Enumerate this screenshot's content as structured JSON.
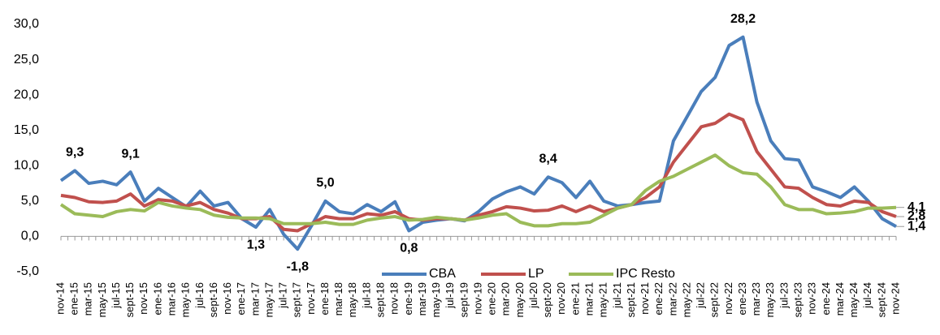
{
  "chart_data": {
    "type": "line",
    "categories": [
      "nov-14",
      "ene-15",
      "mar-15",
      "may-15",
      "jul-15",
      "sept-15",
      "nov-15",
      "ene-16",
      "mar-16",
      "may-16",
      "jul-16",
      "sept-16",
      "nov-16",
      "ene-17",
      "mar-17",
      "may-17",
      "jul-17",
      "sept-17",
      "nov-17",
      "ene-18",
      "mar-18",
      "may-18",
      "jul-18",
      "sept-18",
      "nov-18",
      "ene-19",
      "mar-19",
      "may-19",
      "jul-19",
      "sept-19",
      "nov-19",
      "ene-20",
      "mar-20",
      "may-20",
      "jul-20",
      "sept-20",
      "nov-20",
      "ene-21",
      "mar-21",
      "may-21",
      "jul-21",
      "sept-21",
      "nov-21",
      "ene-22",
      "mar-22",
      "may-22",
      "jul-22",
      "sept-22",
      "nov-22",
      "ene-23",
      "mar-23",
      "may-23",
      "jul-23",
      "sept-23",
      "nov-23",
      "ene-24",
      "mar-24",
      "may-24",
      "jul-24",
      "sept-24",
      "nov-24"
    ],
    "series": [
      {
        "name": "CBA",
        "color": "#4a7ebb",
        "values": [
          7.9,
          9.3,
          7.5,
          7.8,
          7.3,
          9.1,
          5.0,
          6.8,
          5.5,
          4.2,
          6.4,
          4.3,
          4.8,
          2.5,
          1.3,
          3.8,
          0.3,
          -1.8,
          1.5,
          5.0,
          3.5,
          3.2,
          4.5,
          3.5,
          4.9,
          0.8,
          2.0,
          2.3,
          2.5,
          2.2,
          3.5,
          5.3,
          6.3,
          7.0,
          6.0,
          8.4,
          7.6,
          5.5,
          7.8,
          5.0,
          4.3,
          4.5,
          4.8,
          5.0,
          13.5,
          17.0,
          20.5,
          22.5,
          27.0,
          28.2,
          19.0,
          13.5,
          11.0,
          10.8,
          7.0,
          6.3,
          5.5,
          7.0,
          5.0,
          2.5,
          1.4
        ],
        "value_labels": [
          null,
          "9,3",
          null,
          null,
          null,
          "9,1",
          null,
          null,
          null,
          null,
          null,
          null,
          null,
          null,
          "1,3",
          null,
          null,
          "-1,8",
          null,
          "5,0",
          null,
          null,
          null,
          null,
          null,
          "0,8",
          null,
          null,
          null,
          null,
          null,
          null,
          null,
          null,
          null,
          "8,4",
          null,
          null,
          null,
          null,
          null,
          null,
          null,
          null,
          null,
          null,
          null,
          null,
          null,
          "28,2",
          null,
          null,
          null,
          null,
          null,
          null,
          null,
          null,
          null,
          null,
          "1,4"
        ]
      },
      {
        "name": "LP",
        "color": "#c0504d",
        "values": [
          5.8,
          5.5,
          4.9,
          4.8,
          5.0,
          6.0,
          4.3,
          5.2,
          5.0,
          4.3,
          4.8,
          3.8,
          3.3,
          2.5,
          2.5,
          2.8,
          1.0,
          0.8,
          1.8,
          2.8,
          2.5,
          2.5,
          3.2,
          3.0,
          3.5,
          2.5,
          2.3,
          2.5,
          2.5,
          2.3,
          3.0,
          3.5,
          4.2,
          4.0,
          3.6,
          3.7,
          4.3,
          3.5,
          4.3,
          3.5,
          4.0,
          4.5,
          5.5,
          7.0,
          10.5,
          13.0,
          15.5,
          16.0,
          17.3,
          16.5,
          12.0,
          9.5,
          7.0,
          6.8,
          5.5,
          4.5,
          4.3,
          5.0,
          4.8,
          3.5,
          2.8
        ],
        "value_labels": [
          null,
          null,
          null,
          null,
          null,
          null,
          null,
          null,
          null,
          null,
          null,
          null,
          null,
          null,
          null,
          null,
          null,
          null,
          null,
          null,
          null,
          null,
          null,
          null,
          null,
          null,
          null,
          null,
          null,
          null,
          null,
          null,
          null,
          null,
          null,
          null,
          null,
          null,
          null,
          null,
          null,
          null,
          null,
          null,
          null,
          null,
          null,
          null,
          null,
          null,
          null,
          null,
          null,
          null,
          null,
          null,
          null,
          null,
          null,
          null,
          "2,8"
        ]
      },
      {
        "name": "IPC Resto",
        "color": "#9bbb59",
        "values": [
          4.5,
          3.2,
          3.0,
          2.8,
          3.5,
          3.8,
          3.6,
          4.8,
          4.3,
          4.0,
          3.8,
          3.0,
          2.7,
          2.6,
          2.6,
          2.5,
          1.8,
          1.8,
          1.8,
          2.0,
          1.7,
          1.7,
          2.3,
          2.6,
          2.8,
          2.3,
          2.4,
          2.7,
          2.5,
          2.3,
          2.6,
          3.0,
          3.2,
          2.0,
          1.5,
          1.5,
          1.8,
          1.8,
          2.0,
          3.0,
          4.0,
          4.5,
          6.5,
          7.8,
          8.5,
          9.5,
          10.5,
          11.5,
          10.0,
          9.0,
          8.8,
          7.0,
          4.5,
          3.8,
          3.8,
          3.2,
          3.3,
          3.5,
          4.0,
          4.0,
          4.1
        ],
        "value_labels": [
          null,
          null,
          null,
          null,
          null,
          null,
          null,
          null,
          null,
          null,
          null,
          null,
          null,
          null,
          null,
          null,
          null,
          null,
          null,
          null,
          null,
          null,
          null,
          null,
          null,
          null,
          null,
          null,
          null,
          null,
          null,
          null,
          null,
          null,
          null,
          null,
          null,
          null,
          null,
          null,
          null,
          null,
          null,
          null,
          null,
          null,
          null,
          null,
          null,
          null,
          null,
          null,
          null,
          null,
          null,
          null,
          null,
          null,
          null,
          null,
          "4,1"
        ]
      }
    ],
    "ylim": [
      -5,
      30
    ],
    "yticks": [
      {
        "value": -5,
        "label": "-5,0"
      },
      {
        "value": 0,
        "label": "0,0"
      },
      {
        "value": 5,
        "label": "5,0"
      },
      {
        "value": 10,
        "label": "10,0"
      },
      {
        "value": 15,
        "label": "15,0"
      },
      {
        "value": 20,
        "label": "20,0"
      },
      {
        "value": 25,
        "label": "25,0"
      },
      {
        "value": 30,
        "label": "30,0"
      }
    ],
    "grid": false,
    "legend": "bottom"
  }
}
